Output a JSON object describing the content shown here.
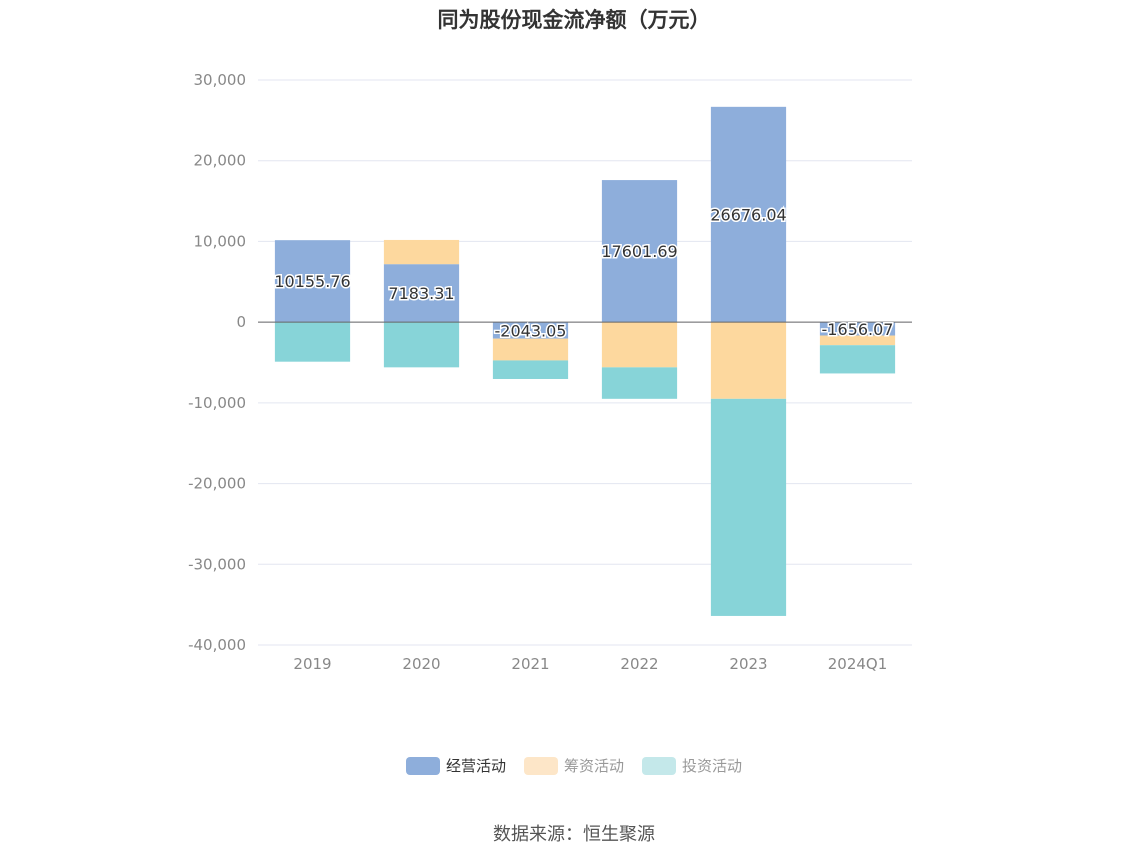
{
  "chart_data": {
    "type": "bar",
    "stacked": true,
    "title": "同为股份现金流净额（万元）",
    "categories": [
      "2019",
      "2020",
      "2021",
      "2022",
      "2023",
      "2024Q1"
    ],
    "ylim": [
      -40000,
      30000
    ],
    "yticks": [
      30000,
      20000,
      10000,
      0,
      -10000,
      -20000,
      -30000,
      -40000
    ],
    "ytick_labels": [
      "30,000",
      "20,000",
      "10,000",
      "0",
      "-10,000",
      "-20,000",
      "-30,000",
      "-40,000"
    ],
    "grid": true,
    "legend_position": "bottom",
    "series": [
      {
        "name": "经营活动",
        "color": "#8eaedb",
        "values": [
          10155.76,
          7183.31,
          -2043.05,
          17601.69,
          26676.04,
          -1656.07
        ],
        "show_labels": true
      },
      {
        "name": "筹资活动",
        "color": "#fdd89e",
        "values": [
          0,
          3000,
          -2700,
          -5600,
          -9500,
          -1200
        ],
        "show_labels": false
      },
      {
        "name": "投资活动",
        "color": "#87d4d8",
        "values": [
          -4900,
          -5600,
          -2300,
          -3900,
          -26900,
          -3500
        ],
        "show_labels": false
      }
    ],
    "legend_colors": [
      "#8eaedb",
      "#fde6c8",
      "#c4e8ea"
    ]
  },
  "source": "数据来源：恒生聚源"
}
